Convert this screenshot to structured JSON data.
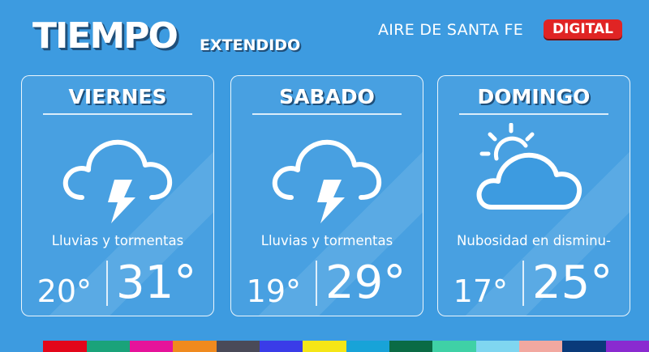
{
  "header": {
    "title": "TIEMPO",
    "subtitle": "EXTENDIDO",
    "brand": "AIRE DE SANTA FE",
    "badge": "DIGITAL"
  },
  "days": [
    {
      "day": "VIERNES",
      "icon": "storm-cloud-icon",
      "description": "Lluvias y tormentas",
      "min": "20°",
      "max": "31°"
    },
    {
      "day": "SABADO",
      "icon": "storm-cloud-icon",
      "description": "Lluvias y tormentas",
      "min": "19°",
      "max": "29°"
    },
    {
      "day": "DOMINGO",
      "icon": "partly-cloudy-icon",
      "description": "Nubosidad en disminu-",
      "min": "17°",
      "max": "25°"
    }
  ],
  "colors": {
    "background": "#3d9be0",
    "badge": "#e02424",
    "strip": [
      "#3d9be0",
      "#e3061a",
      "#1aa37a",
      "#e6139a",
      "#f08a1e",
      "#4a4a58",
      "#3a3ce8",
      "#f5e616",
      "#18a3d8",
      "#0a6b45",
      "#3fd1a6",
      "#7fd6f0",
      "#f2a8a0",
      "#0a3a7a",
      "#8a2ad0"
    ]
  }
}
